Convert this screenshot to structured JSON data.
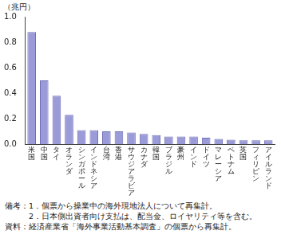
{
  "chart_data": {
    "type": "bar",
    "y_label": "（兆円）",
    "categories": [
      "米国",
      "中国",
      "タイ",
      "オランダ",
      "シンガポール",
      "インドネシア",
      "台湾",
      "香港",
      "サウジアラビア",
      "カナダ",
      "韓国",
      "ブラジル",
      "豪州",
      "インド",
      "ドイツ",
      "マレーシア",
      "ベトナム",
      "英国",
      "フィリピン",
      "アイルランド"
    ],
    "values": [
      0.88,
      0.5,
      0.38,
      0.23,
      0.11,
      0.11,
      0.1,
      0.1,
      0.09,
      0.08,
      0.07,
      0.06,
      0.06,
      0.06,
      0.05,
      0.04,
      0.035,
      0.03,
      0.03,
      0.03
    ],
    "color": "#9b9bd9",
    "ylim": [
      0,
      1.0
    ],
    "yticks": [
      {
        "value": 0,
        "label": "0.0"
      },
      0.2,
      0.4,
      0.6,
      0.8,
      {
        "value": 1.0,
        "label": "1.0"
      }
    ],
    "grid": false,
    "notes": [
      "備考：1．個票から操業中の海外現地法人について再集計。",
      "2．日本側出資者向け支払は、配当金、ロイヤリティ等を含む。",
      "資料：経済産業省「海外事業活動基本調査」の個票から再集計。"
    ]
  }
}
